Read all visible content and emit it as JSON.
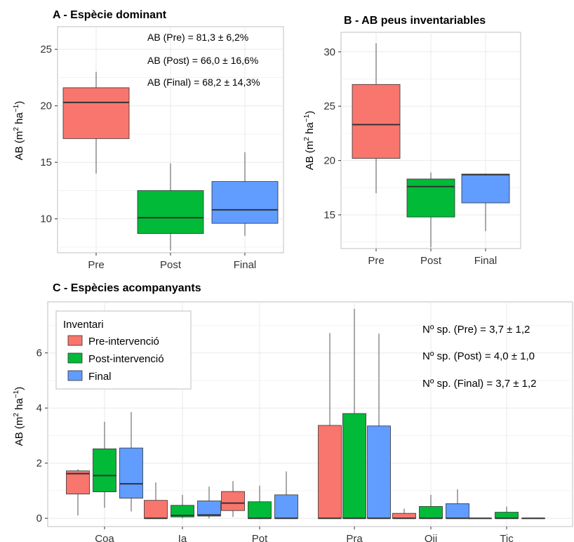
{
  "colors": {
    "pre": "#F8766D",
    "post": "#00BA38",
    "final": "#619CFF",
    "grid": "#EBEBEB",
    "frame": "#BFBFBF",
    "median": "#333333",
    "whisker": "#555555"
  },
  "chart_data": [
    {
      "type": "box",
      "title": "A - Espècie dominant",
      "ylabel": "AB (m² ha⁻¹)",
      "ylim": [
        7,
        27
      ],
      "yticks": [
        10,
        15,
        20,
        25
      ],
      "grid": true,
      "categories": [
        "Pre",
        "Post",
        "Final"
      ],
      "boxes": [
        {
          "category": "Pre",
          "min": 14.0,
          "q1": 17.1,
          "median": 20.3,
          "q3": 21.6,
          "max": 23.0,
          "color_key": "pre"
        },
        {
          "category": "Post",
          "min": 7.2,
          "q1": 8.7,
          "median": 10.1,
          "q3": 12.5,
          "max": 14.9,
          "color_key": "post"
        },
        {
          "category": "Final",
          "min": 8.5,
          "q1": 9.6,
          "median": 10.8,
          "q3": 13.3,
          "max": 15.9,
          "color_key": "final"
        }
      ],
      "annotations": [
        "AB (Pre) = 81,3 ± 6,2%",
        "AB (Post) = 66,0 ± 16,6%",
        "AB (Final) = 68,2 ± 14,3%"
      ]
    },
    {
      "type": "box",
      "title": "B - AB peus inventariables",
      "ylabel": "AB (m² ha⁻¹)",
      "ylim": [
        11.9,
        31.8
      ],
      "yticks": [
        15,
        20,
        25,
        30
      ],
      "grid": true,
      "categories": [
        "Pre",
        "Post",
        "Final"
      ],
      "boxes": [
        {
          "category": "Pre",
          "min": 17.0,
          "q1": 20.2,
          "median": 23.3,
          "q3": 27.0,
          "max": 30.8,
          "color_key": "pre"
        },
        {
          "category": "Post",
          "min": 12.0,
          "q1": 14.8,
          "median": 17.6,
          "q3": 18.3,
          "max": 18.9,
          "color_key": "post"
        },
        {
          "category": "Final",
          "min": 13.5,
          "q1": 16.1,
          "median": 18.7,
          "q3": 18.75,
          "max": 18.8,
          "color_key": "final"
        }
      ],
      "annotations": []
    },
    {
      "type": "box",
      "title": "C - Espècies acompanyants",
      "ylabel": "AB (m² ha⁻¹)",
      "ylim": [
        -0.3,
        7.85
      ],
      "yticks": [
        0,
        2,
        4,
        6
      ],
      "grid": true,
      "categories": [
        "Coa",
        "Ia",
        "Pot",
        "Pra",
        "Qii",
        "Tic"
      ],
      "legend": {
        "title": "Inventari",
        "position": "top-left",
        "items": [
          {
            "label": "Pre-intervenció",
            "color_key": "pre"
          },
          {
            "label": "Post-intervenció",
            "color_key": "post"
          },
          {
            "label": "Final",
            "color_key": "final"
          }
        ]
      },
      "series": [
        {
          "key": "pre",
          "boxes": [
            {
              "min": 0.1,
              "q1": 0.88,
              "median": 1.62,
              "q3": 1.72,
              "max": 1.78
            },
            {
              "min": 0,
              "q1": 0,
              "median": 0,
              "q3": 0.65,
              "max": 1.3
            },
            {
              "min": 0.05,
              "q1": 0.28,
              "median": 0.55,
              "q3": 0.97,
              "max": 1.35
            },
            {
              "min": 0,
              "q1": 0,
              "median": 0,
              "q3": 3.37,
              "max": 6.72
            },
            {
              "min": 0,
              "q1": 0,
              "median": 0,
              "q3": 0.18,
              "max": 0.35
            },
            {
              "min": 0,
              "q1": 0,
              "median": 0,
              "q3": 0,
              "max": 0
            }
          ]
        },
        {
          "key": "post",
          "boxes": [
            {
              "min": 0.38,
              "q1": 0.96,
              "median": 1.55,
              "q3": 2.52,
              "max": 3.5
            },
            {
              "min": 0,
              "q1": 0.05,
              "median": 0.1,
              "q3": 0.47,
              "max": 0.85
            },
            {
              "min": 0,
              "q1": 0,
              "median": 0,
              "q3": 0.6,
              "max": 1.18
            },
            {
              "min": 0,
              "q1": 0,
              "median": 0,
              "q3": 3.8,
              "max": 7.6
            },
            {
              "min": 0,
              "q1": 0,
              "median": 0,
              "q3": 0.43,
              "max": 0.85
            },
            {
              "min": 0,
              "q1": 0,
              "median": 0,
              "q3": 0.22,
              "max": 0.42
            }
          ]
        },
        {
          "key": "final",
          "boxes": [
            {
              "min": 0.25,
              "q1": 0.73,
              "median": 1.25,
              "q3": 2.55,
              "max": 3.85
            },
            {
              "min": 0,
              "q1": 0.08,
              "median": 0.12,
              "q3": 0.63,
              "max": 1.15
            },
            {
              "min": 0,
              "q1": 0,
              "median": 0,
              "q3": 0.85,
              "max": 1.7
            },
            {
              "min": 0,
              "q1": 0,
              "median": 0,
              "q3": 3.35,
              "max": 6.7
            },
            {
              "min": 0,
              "q1": 0,
              "median": 0,
              "q3": 0.53,
              "max": 1.05
            },
            {
              "min": 0,
              "q1": 0,
              "median": 0,
              "q3": 0,
              "max": 0
            }
          ]
        }
      ],
      "annotations": [
        "Nº sp. (Pre) = 3,7 ± 1,2",
        "Nº sp. (Post) = 4,0 ± 1,0",
        "Nº sp. (Final) = 3,7 ± 1,2"
      ]
    }
  ]
}
